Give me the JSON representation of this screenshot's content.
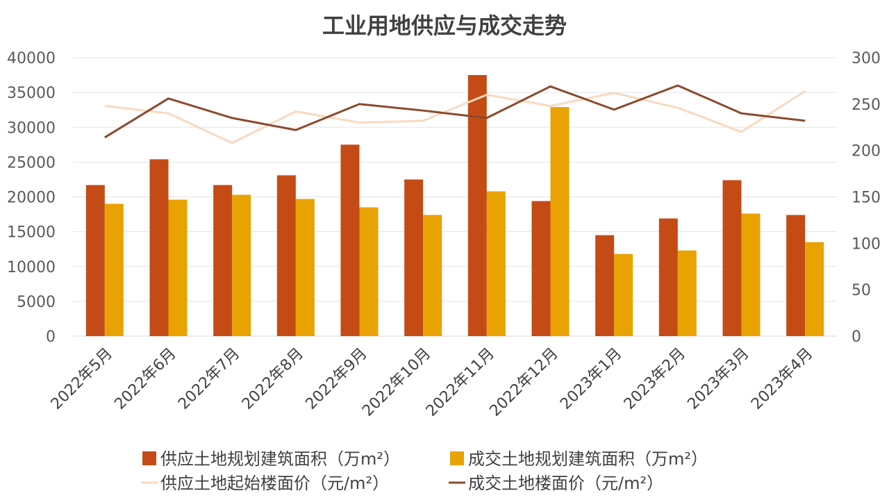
{
  "chart_data": {
    "type": "bar",
    "title": "工业用地供应与成交走势",
    "categories": [
      "2022年5月",
      "2022年6月",
      "2022年7月",
      "2022年8月",
      "2022年9月",
      "2022年10月",
      "2022年11月",
      "2022年12月",
      "2023年1月",
      "2023年2月",
      "2023年3月",
      "2023年4月"
    ],
    "y_left": {
      "ylim": [
        0,
        40000
      ],
      "ticks": [
        0,
        5000,
        10000,
        15000,
        20000,
        25000,
        30000,
        35000,
        40000
      ]
    },
    "y_right": {
      "ylim": [
        0,
        300
      ],
      "ticks": [
        0,
        50,
        100,
        150,
        200,
        250,
        300
      ]
    },
    "grid": true,
    "legend_position": "bottom",
    "series": [
      {
        "name": "供应土地规划建筑面积（万m²）",
        "kind": "bar",
        "axis": "left",
        "color": "#c44b16",
        "values": [
          21700,
          25400,
          21700,
          23100,
          27500,
          22500,
          37500,
          19400,
          14500,
          16900,
          22400,
          17400
        ]
      },
      {
        "name": "成交土地规划建筑面积（万m²）",
        "kind": "bar",
        "axis": "left",
        "color": "#e8a202",
        "values": [
          19000,
          19600,
          20300,
          19700,
          18500,
          17400,
          20800,
          32900,
          11800,
          12300,
          17600,
          13500
        ]
      },
      {
        "name": "供应土地起始楼面价（元/m²）",
        "kind": "line",
        "axis": "right",
        "color": "#f8d9bf",
        "values": [
          248,
          240,
          208,
          242,
          230,
          232,
          260,
          248,
          262,
          246,
          220,
          264
        ]
      },
      {
        "name": "成交土地楼面价（元/m²）",
        "kind": "line",
        "axis": "right",
        "color": "#8b4a2b",
        "values": [
          214,
          256,
          235,
          222,
          250,
          243,
          235,
          269,
          244,
          270,
          240,
          232
        ]
      }
    ]
  }
}
